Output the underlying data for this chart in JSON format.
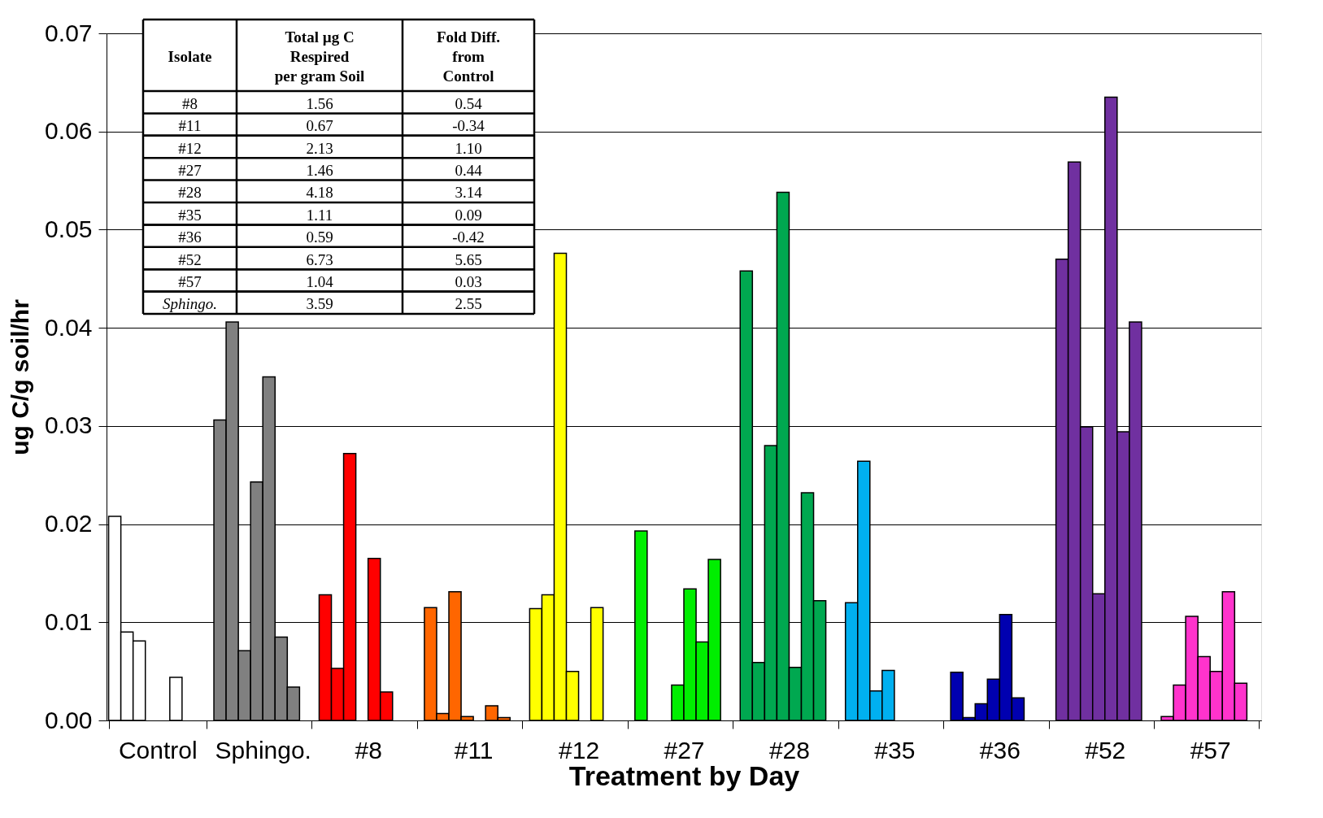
{
  "chart_data": {
    "type": "bar",
    "xlabel": "Treatment by Day",
    "ylabel": "ug C/g soil/hr",
    "categories": [
      "Control",
      "Sphingo.",
      "#8",
      "#11",
      "#12",
      "#27",
      "#28",
      "#35",
      "#36",
      "#52",
      "#57"
    ],
    "series": [
      {
        "colors": [
          "#ffffff",
          "#808080",
          "#ff0000",
          "#ff6600",
          "#ffff00",
          "#00ee00",
          "#00a850",
          "#00b0f0",
          "#0000b0",
          "#7030a0",
          "#ff33cc"
        ],
        "values": [
          0.0208,
          0.0306,
          0.0128,
          0.0115,
          0.0114,
          0.0193,
          0.0458,
          0.012,
          0.0049,
          0.047,
          0.0004
        ]
      },
      {
        "colors": [
          "#ffffff",
          "#808080",
          "#ff0000",
          "#ff6600",
          "#ffff00",
          "#00ee00",
          "#00a850",
          "#00b0f0",
          "#0000b0",
          "#7030a0",
          "#ff33cc"
        ],
        "values": [
          0.009,
          0.0406,
          0.0053,
          0.0007,
          0.0128,
          null,
          0.0059,
          0.0264,
          0.0003,
          0.0569,
          0.0036
        ]
      },
      {
        "colors": [
          "#ffffff",
          "#808080",
          "#ff0000",
          "#ff6600",
          "#ffff00",
          "#00ee00",
          "#00a850",
          "#00b0f0",
          "#0000b0",
          "#7030a0",
          "#ff33cc"
        ],
        "values": [
          0.0081,
          0.0071,
          0.0272,
          0.0131,
          0.0476,
          null,
          0.028,
          0.003,
          0.0017,
          0.0299,
          0.0106
        ]
      },
      {
        "colors": [
          "#ffffff",
          "#808080",
          "#ff0000",
          "#ff6600",
          "#ffff00",
          "#00ee00",
          "#00a850",
          "#00b0f0",
          "#0000b0",
          "#7030a0",
          "#ff33cc"
        ],
        "values": [
          null,
          0.0243,
          null,
          0.0004,
          0.005,
          0.0036,
          0.0538,
          0.0051,
          0.0042,
          0.0129,
          0.0065
        ]
      },
      {
        "colors": [
          "#ffffff",
          "#808080",
          "#ff0000",
          "#ff6600",
          "#ffff00",
          "#00ee00",
          "#00a850",
          "#00b0f0",
          "#0000b0",
          "#7030a0",
          "#ff33cc"
        ],
        "values": [
          null,
          0.035,
          0.0165,
          null,
          null,
          0.0134,
          0.0054,
          null,
          0.0108,
          0.0635,
          0.005
        ]
      },
      {
        "colors": [
          "#ffffff",
          "#808080",
          "#ff0000",
          "#ff6600",
          "#ffff00",
          "#00ee00",
          "#00a850",
          "#00b0f0",
          "#0000b0",
          "#7030a0",
          "#ff33cc"
        ],
        "values": [
          0.0044,
          0.0085,
          0.0029,
          0.0015,
          0.0115,
          0.008,
          0.0232,
          null,
          0.0023,
          0.0294,
          0.0131
        ]
      },
      {
        "colors": [
          "#ffffff",
          "#808080",
          "#ff0000",
          "#ff6600",
          "#ffff00",
          "#00ee00",
          "#00a850",
          "#00b0f0",
          "#0000b0",
          "#7030a0",
          "#ff33cc"
        ],
        "values": [
          null,
          0.0034,
          null,
          0.0003,
          null,
          0.0164,
          0.0122,
          null,
          null,
          0.0406,
          0.0038
        ]
      },
      {
        "colors": [
          "#ffffff",
          "#808080",
          "#ff0000",
          "#ff6600",
          "#ffff00",
          "#00ee00",
          "#00a850",
          "#00b0f0",
          "#0000b0",
          "#7030a0",
          "#ff33cc"
        ],
        "values": [
          null,
          null,
          null,
          null,
          null,
          null,
          null,
          null,
          null,
          null,
          null
        ]
      }
    ],
    "ylim": [
      0,
      0.07
    ],
    "yticks": [
      {
        "value": 0,
        "label": "0.00"
      },
      {
        "value": 0.01,
        "label": "0.01"
      },
      {
        "value": 0.02,
        "label": "0.02"
      },
      {
        "value": 0.03,
        "label": "0.03"
      },
      {
        "value": 0.04,
        "label": "0.04"
      },
      {
        "value": 0.05,
        "label": "0.05"
      },
      {
        "value": 0.06,
        "label": "0.06"
      },
      {
        "value": 0.07,
        "label": "0.07"
      }
    ],
    "grid": "y",
    "annotations": [
      "Isolate",
      "Total µg C\nRespired\nper gram Soil",
      "Fold Diff.\nfrom\nControl",
      "#8",
      "1.56",
      "0.54",
      "#11",
      "0.67",
      "-0.34",
      "#12",
      "2.13",
      "1.10",
      "#27",
      "1.46",
      "0.44",
      "#28",
      "4.18",
      "3.14",
      "#35",
      "1.11",
      "0.09",
      "#36",
      "0.59",
      "-0.42",
      "#52",
      "6.73",
      "5.65",
      "#57",
      "1.04",
      "0.03",
      "Sphingo.",
      "3.59",
      "2.55"
    ]
  }
}
